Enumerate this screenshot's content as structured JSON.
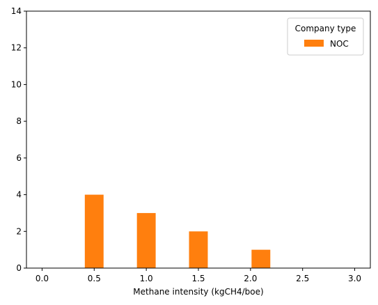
{
  "chart_data": {
    "type": "bar",
    "title": "",
    "xlabel": "Methane intensity (kgCH4/boe)",
    "ylabel": "",
    "xlim": [
      -0.15,
      3.15
    ],
    "ylim": [
      0,
      14
    ],
    "xticks": [
      0.0,
      0.5,
      1.0,
      1.5,
      2.0,
      2.5,
      3.0
    ],
    "xtick_labels": [
      "0.0",
      "0.5",
      "1.0",
      "1.5",
      "2.0",
      "2.5",
      "3.0"
    ],
    "yticks": [
      0,
      2,
      4,
      6,
      8,
      10,
      12,
      14
    ],
    "ytick_labels": [
      "0",
      "2",
      "4",
      "6",
      "8",
      "10",
      "12",
      "14"
    ],
    "grid": false,
    "legend": {
      "title": "Company type",
      "placement": "top-right",
      "entries": [
        "NOC"
      ]
    },
    "bar_width": 0.18,
    "series": [
      {
        "name": "NOC",
        "color": "#ff7f0e",
        "x": [
          0.5,
          1.0,
          1.5,
          2.1
        ],
        "values": [
          4,
          3,
          2,
          1
        ]
      }
    ]
  }
}
